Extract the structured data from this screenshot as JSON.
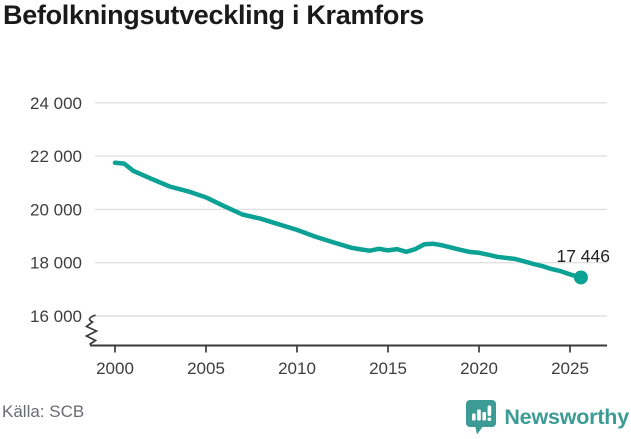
{
  "title": "Befolkningsutveckling i Kramfors",
  "footer": {
    "source": "Källa: SCB",
    "brand": "Newsworthy"
  },
  "colors": {
    "line": "#0ba195",
    "brand_teal": "#3c9b95",
    "grid": "#e0e0e0",
    "axis": "#3a3a3a",
    "axis_text": "#3e3e3e",
    "title_text": "#1a1a1a",
    "source_text": "#6b6b74"
  },
  "chart_data": {
    "type": "line",
    "title": "Befolkningsutveckling i Kramfors",
    "xlabel": "",
    "ylabel": "",
    "grid": "horizontal",
    "legend": "none",
    "axis_break_at_origin": true,
    "x_ticks": [
      "2000",
      "2005",
      "2010",
      "2015",
      "2020",
      "2025"
    ],
    "y_ticks": [
      {
        "value": 24000,
        "label": "24 000"
      },
      {
        "value": 22000,
        "label": "22 000"
      },
      {
        "value": 20000,
        "label": "20 000"
      },
      {
        "value": 18000,
        "label": "18 000"
      },
      {
        "value": 16000,
        "label": "16 000"
      }
    ],
    "ylim": [
      16000,
      24000
    ],
    "xlim": [
      1998.6,
      2027.0
    ],
    "end_annotation": {
      "label": "17 446",
      "value": 17446,
      "x": 2025.6
    },
    "series": [
      {
        "name": "Folkmängd i Kramfors",
        "color": "#0ba195",
        "points": [
          [
            2000,
            21750
          ],
          [
            2000.5,
            21720
          ],
          [
            2001,
            21450
          ],
          [
            2002,
            21150
          ],
          [
            2003,
            20860
          ],
          [
            2004,
            20680
          ],
          [
            2005,
            20450
          ],
          [
            2006,
            20120
          ],
          [
            2007,
            19810
          ],
          [
            2008,
            19650
          ],
          [
            2009,
            19440
          ],
          [
            2010,
            19230
          ],
          [
            2011,
            18980
          ],
          [
            2012,
            18760
          ],
          [
            2013,
            18560
          ],
          [
            2013.5,
            18500
          ],
          [
            2014,
            18450
          ],
          [
            2014.5,
            18520
          ],
          [
            2015,
            18460
          ],
          [
            2015.5,
            18510
          ],
          [
            2016,
            18410
          ],
          [
            2016.5,
            18510
          ],
          [
            2017,
            18690
          ],
          [
            2017.5,
            18710
          ],
          [
            2018,
            18650
          ],
          [
            2019,
            18480
          ],
          [
            2019.5,
            18400
          ],
          [
            2020,
            18370
          ],
          [
            2020.5,
            18300
          ],
          [
            2021,
            18220
          ],
          [
            2022,
            18140
          ],
          [
            2022.5,
            18050
          ],
          [
            2023,
            17950
          ],
          [
            2023.5,
            17870
          ],
          [
            2024,
            17760
          ],
          [
            2024.5,
            17680
          ],
          [
            2025,
            17560
          ],
          [
            2025.6,
            17446
          ]
        ]
      }
    ]
  }
}
